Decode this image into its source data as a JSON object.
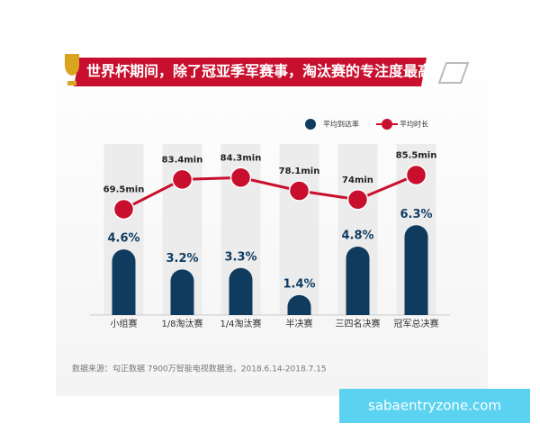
{
  "chart_data": {
    "type": "bar",
    "title": "世界杯期间，除了冠亚季军赛事，淘汰赛的专注度最高",
    "categories": [
      "小组赛",
      "1/8淘汰赛",
      "1/4淘汰赛",
      "半决赛",
      "三四名决赛",
      "冠军总决赛"
    ],
    "series": [
      {
        "name": "平均到达率",
        "color": "#0f3b5f",
        "values": [
          4.6,
          3.2,
          3.3,
          1.4,
          4.8,
          6.3
        ],
        "value_labels": [
          "4.6%",
          "3.2%",
          "3.3%",
          "1.4%",
          "4.8%",
          "6.3%"
        ]
      },
      {
        "name": "平均时长",
        "type": "line",
        "axis": "y2",
        "color": "#c8102e",
        "values": [
          69.5,
          83.4,
          84.3,
          78.1,
          74,
          85.5
        ],
        "value_labels": [
          "69.5min",
          "83.4min",
          "84.3min",
          "78.1min",
          "74min",
          "85.5min"
        ]
      }
    ],
    "ylim": [
      0,
      12
    ],
    "y2lim": [
      20,
      100
    ],
    "source": "数据来源：勾正数据 7900万智能电视数据池，2018.6.14-2018.7.15"
  },
  "watermark": "sabaentryzone.com"
}
